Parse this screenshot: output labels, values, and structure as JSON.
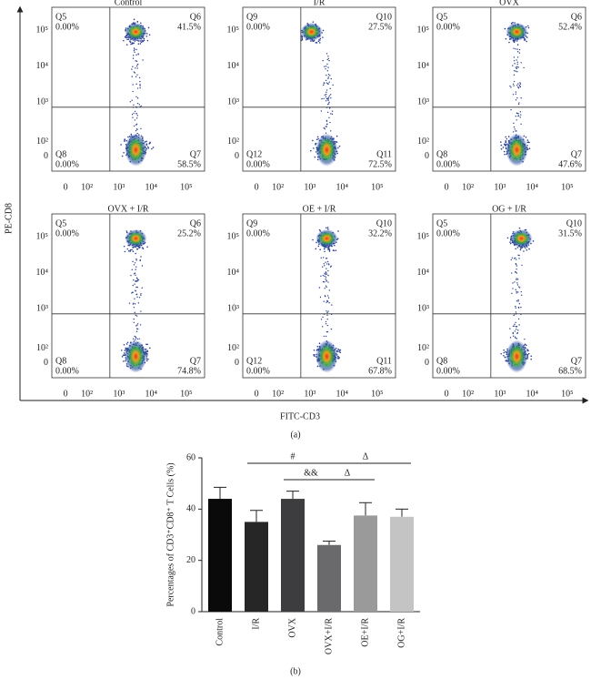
{
  "figure_a": {
    "xlabel": "FITC-CD3",
    "ylabel": "PE-CD8",
    "caption": "(a)",
    "xticks": [
      "0",
      "10²",
      "10³",
      "10⁴",
      "10⁵"
    ],
    "yticks": [
      "10⁵",
      "10⁴",
      "10³",
      "10²",
      "0"
    ],
    "panels": [
      {
        "title": "Control",
        "quadrants": [
          {
            "name": "Q5",
            "value": 0,
            "label": "0.00%"
          },
          {
            "name": "Q6",
            "value": 41.5,
            "label": "41.5%"
          },
          {
            "name": "Q8",
            "value": 0,
            "label": "0.00%"
          },
          {
            "name": "Q7",
            "value": 58.5,
            "label": "58.5%"
          }
        ]
      },
      {
        "title": "I/R",
        "quadrants": [
          {
            "name": "Q9",
            "value": 0,
            "label": "0.00%"
          },
          {
            "name": "Q10",
            "value": 27.5,
            "label": "27.5%"
          },
          {
            "name": "Q12",
            "value": 0,
            "label": "0.00%"
          },
          {
            "name": "Q11",
            "value": 72.5,
            "label": "72.5%"
          }
        ]
      },
      {
        "title": "OVX",
        "quadrants": [
          {
            "name": "Q5",
            "value": 0,
            "label": "0.00%"
          },
          {
            "name": "Q6",
            "value": 52.4,
            "label": "52.4%"
          },
          {
            "name": "Q8",
            "value": 0,
            "label": "0.00%"
          },
          {
            "name": "Q7",
            "value": 47.6,
            "label": "47.6%"
          }
        ]
      },
      {
        "title": "OVX + I/R",
        "quadrants": [
          {
            "name": "Q5",
            "value": 0,
            "label": "0.00%"
          },
          {
            "name": "Q6",
            "value": 25.2,
            "label": "25.2%"
          },
          {
            "name": "Q8",
            "value": 0,
            "label": "0.00%"
          },
          {
            "name": "Q7",
            "value": 74.8,
            "label": "74.8%"
          }
        ]
      },
      {
        "title": "OE + I/R",
        "quadrants": [
          {
            "name": "Q9",
            "value": 0,
            "label": "0.00%"
          },
          {
            "name": "Q10",
            "value": 32.2,
            "label": "32.2%"
          },
          {
            "name": "Q12",
            "value": 0,
            "label": "0.00%"
          },
          {
            "name": "Q11",
            "value": 67.8,
            "label": "67.8%"
          }
        ]
      },
      {
        "title": "OG + I/R",
        "quadrants": [
          {
            "name": "Q5",
            "value": 0,
            "label": "0.00%"
          },
          {
            "name": "Q10",
            "value": 31.5,
            "label": "31.5%"
          },
          {
            "name": "Q8",
            "value": 0,
            "label": "0.00%"
          },
          {
            "name": "Q7",
            "value": 68.5,
            "label": "68.5%"
          }
        ]
      }
    ]
  },
  "chart_data": {
    "type": "bar",
    "ylabel": "Percentages of CD3⁺CD8⁺ T Cells (%)",
    "caption": "(b)",
    "categories": [
      "Control",
      "I/R",
      "OVX",
      "OVX+I/R",
      "OE+I/R",
      "OG+I/R"
    ],
    "values": [
      44,
      35,
      44,
      26,
      37.5,
      37
    ],
    "errors": [
      4.5,
      4.5,
      3,
      1.5,
      5,
      3
    ],
    "colors": [
      "#0a0a0a",
      "#262626",
      "#3d3d3f",
      "#6a6a6c",
      "#9a9a9a",
      "#c4c4c4"
    ],
    "ylim": [
      0,
      60
    ],
    "yticks": [
      0,
      20,
      40,
      60
    ],
    "annotations": [
      {
        "text": "#",
        "from": "I/R",
        "to": "OVX+I/R"
      },
      {
        "text": "Δ",
        "from": "OVX+I/R",
        "to": "OG+I/R"
      },
      {
        "text": "&&",
        "from": "OVX",
        "to": "OVX+I/R"
      },
      {
        "text": "Δ",
        "from": "OVX+I/R",
        "to": "OE+I/R"
      }
    ]
  }
}
